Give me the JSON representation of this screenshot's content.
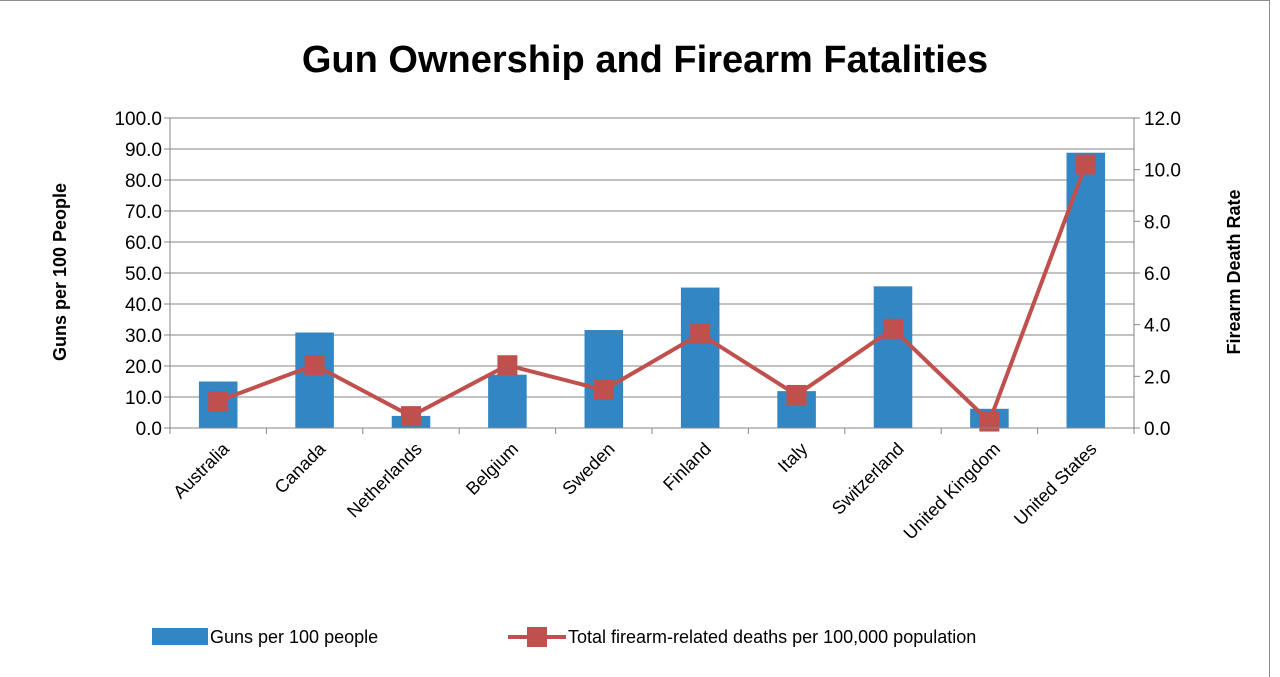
{
  "chart_data": {
    "type": "bar",
    "title": "Gun Ownership and Firearm Fatalities",
    "categories": [
      "Australia",
      "Canada",
      "Netherlands",
      "Belgium",
      "Sweden",
      "Finland",
      "Italy",
      "Switzerland",
      "United Kingdom",
      "United States"
    ],
    "series": [
      {
        "name": "Guns per 100 people",
        "type": "bar",
        "axis": "left",
        "color": "#3386C4",
        "values": [
          15.0,
          30.8,
          3.9,
          17.2,
          31.6,
          45.3,
          11.9,
          45.7,
          6.2,
          88.8
        ]
      },
      {
        "name": "Total firearm-related deaths per 100,000 population",
        "type": "line",
        "axis": "right",
        "color": "#C0504D",
        "values": [
          1.04,
          2.44,
          0.46,
          2.43,
          1.47,
          3.64,
          1.28,
          3.84,
          0.25,
          10.2
        ]
      }
    ],
    "ylabel": "Guns per 100 People",
    "y2label": "Firearm Death Rate",
    "ylim": [
      0,
      100
    ],
    "y2lim": [
      0,
      12
    ],
    "yticks": [
      "0.0",
      "10.0",
      "20.0",
      "30.0",
      "40.0",
      "50.0",
      "60.0",
      "70.0",
      "80.0",
      "90.0",
      "100.0"
    ],
    "y2ticks": [
      "0.0",
      "2.0",
      "4.0",
      "6.0",
      "8.0",
      "10.0",
      "12.0"
    ],
    "grid": true,
    "legend": "bottom"
  }
}
